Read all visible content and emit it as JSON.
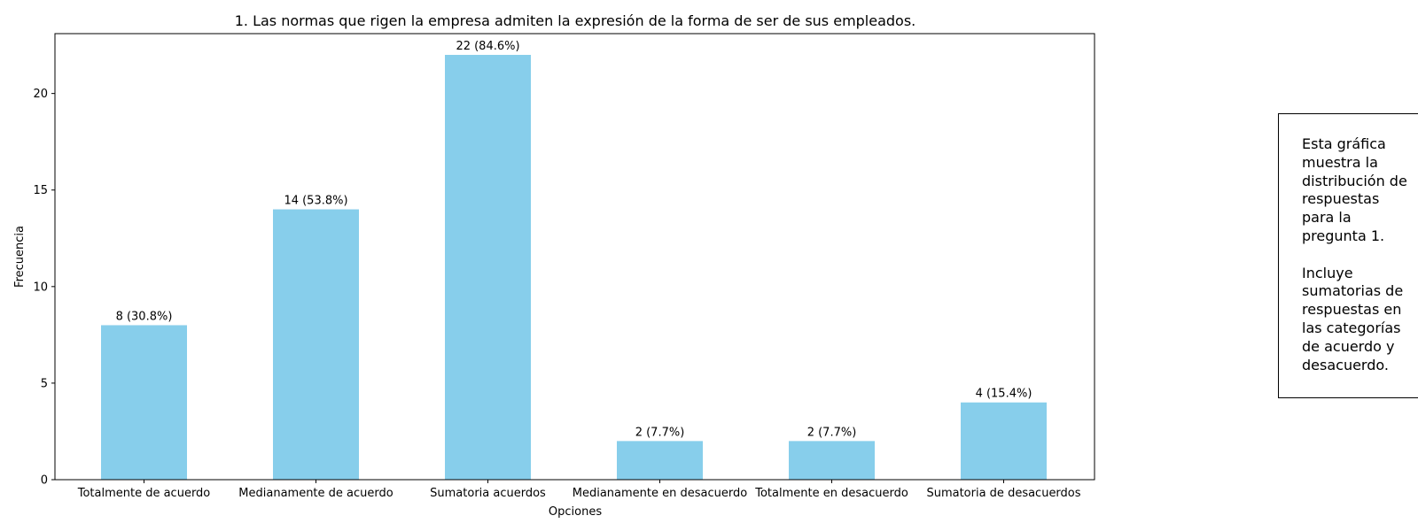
{
  "chart_data": {
    "type": "bar",
    "title": "1. Las normas que rigen la empresa admiten la expresión de la forma de ser de sus empleados.",
    "xlabel": "Opciones",
    "ylabel": "Frecuencia",
    "categories": [
      "Totalmente de acuerdo",
      "Medianamente de acuerdo",
      "Sumatoria acuerdos",
      "Medianamente en desacuerdo",
      "Totalmente en desacuerdo",
      "Sumatoria de desacuerdos"
    ],
    "values": [
      8,
      14,
      22,
      2,
      2,
      4
    ],
    "data_labels": [
      "8 (30.8%)",
      "14 (53.8%)",
      "22 (84.6%)",
      "2 (7.7%)",
      "2 (7.7%)",
      "4 (15.4%)"
    ],
    "ylim": [
      0,
      23.1
    ],
    "yticks": [
      "0",
      "5",
      "10",
      "15",
      "20"
    ],
    "bar_color": "#87ceeb",
    "grid": false
  },
  "note": {
    "text": "Esta gráfica\nmuestra la\ndistribución de\nrespuestas\npara la\npregunta 1.\n\nIncluye\nsumatorias de\nrespuestas en\nlas categorías\nde acuerdo y\ndesacuerdo."
  }
}
